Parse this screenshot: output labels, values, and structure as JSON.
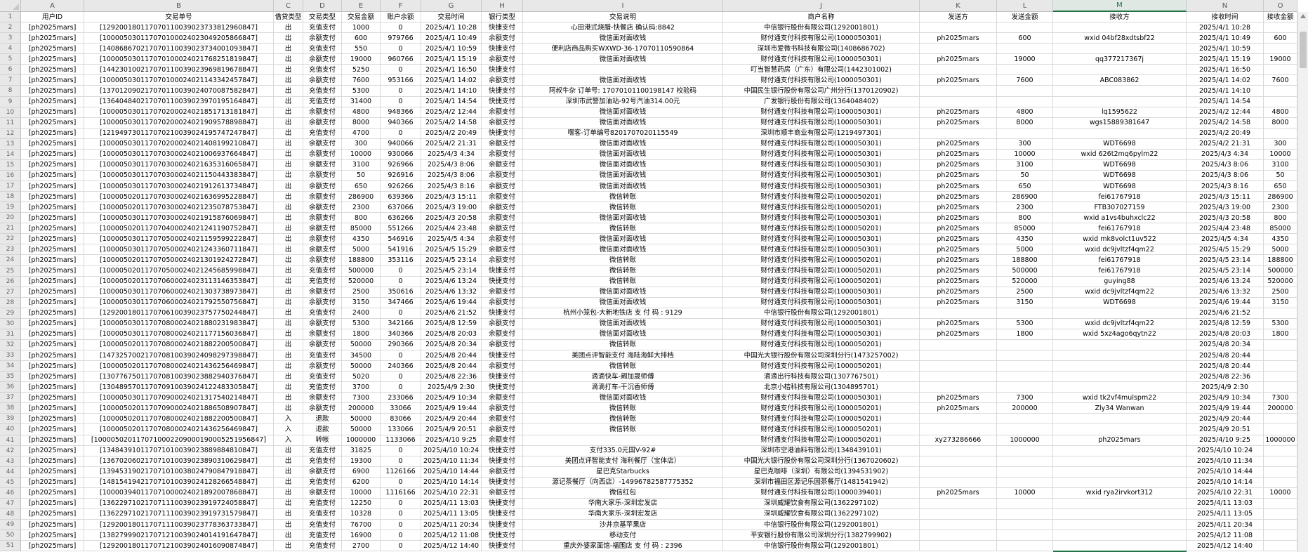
{
  "sheet": {
    "column_letters": [
      "A",
      "B",
      "C",
      "D",
      "E",
      "F",
      "G",
      "H",
      "I",
      "J",
      "K",
      "L",
      "M",
      "N",
      "O"
    ],
    "selected_column": "M",
    "selection_color": "#217346",
    "field_headers": [
      "用户ID",
      "交易单号",
      "借贷类型",
      "交易类型",
      "交易金额",
      "账户余额",
      "交易时间",
      "银行类型",
      "交易说明",
      "商户名称",
      "发送方",
      "发送金额",
      "接收方",
      "接收时间",
      "接收金额"
    ],
    "rows": [
      [
        "[ph2025mars]",
        "[129200180117070110039023733812960847]",
        "出",
        "充值支付",
        "1000",
        "0",
        "2025/4/1 10:28",
        "快捷支付",
        "心田港式烧腊-快餐店 确认码:8842",
        "中信银行股份有限公司(1292001801)",
        "",
        "",
        "",
        "2025/4/1 10:28",
        ""
      ],
      [
        "[ph2025mars]",
        "[100005030117070100024023049205866847]",
        "出",
        "余额支付",
        "600",
        "979766",
        "2025/4/1 10:49",
        "余额支付",
        "微信面对面收钱",
        "财付通支付科技有限公司(1000050301)",
        "ph2025mars",
        "600",
        "wxid 04bf28xdtsbf22",
        "2025/4/1 10:49",
        "600"
      ],
      [
        "[ph2025mars]",
        "[140868670217070110039023734001093847]",
        "出",
        "充值支付",
        "550",
        "0",
        "2025/4/1 10:59",
        "快捷支付",
        "便利店商品购买WXWD-36-17070110590864",
        "深圳市爱微书科技有限公司(1408686702)",
        "",
        "",
        "",
        "2025/4/1 10:59",
        ""
      ],
      [
        "[ph2025mars]",
        "[100005030117070100024021768251819847]",
        "出",
        "余额支付",
        "19000",
        "960766",
        "2025/4/1 15:19",
        "余额支付",
        "微信面对面收钱",
        "财付通支付科技有限公司(1000050301)",
        "ph2025mars",
        "19000",
        "qq377217367j",
        "2025/4/1 15:19",
        "19000"
      ],
      [
        "[ph2025mars]",
        "[144230100217070110039023969819678847]",
        "出",
        "充值支付",
        "5250",
        "0",
        "2025/4/1 16:50",
        "快捷支付",
        "",
        "叮当智慧药房（广东）有限公司(1442301002)",
        "",
        "",
        "",
        "2025/4/1 16:50",
        ""
      ],
      [
        "[ph2025mars]",
        "[100005030117070100024021143342457847]",
        "出",
        "余额支付",
        "7600",
        "953166",
        "2025/4/1 14:02",
        "余额支付",
        "微信面对面收钱",
        "财付通支付科技有限公司(1000050301)",
        "ph2025mars",
        "7600",
        "ABC083862",
        "2025/4/1 14:02",
        "7600"
      ],
      [
        "[ph2025mars]",
        "[137012090217070110039024070087582847]",
        "出",
        "充值支付",
        "5300",
        "0",
        "2025/4/1 14:10",
        "快捷支付",
        "阿叔牛杂 订单号: 17070101100198147 校验码",
        "中国民生银行股份有限公司广州分行(1370120902)",
        "",
        "",
        "",
        "2025/4/1 14:10",
        ""
      ],
      [
        "[ph2025mars]",
        "[136404840217070110039023970195164847]",
        "出",
        "充值支付",
        "31400",
        "0",
        "2025/4/1 14:54",
        "快捷支付",
        "深圳市武警加油站-92号汽油314.00元",
        "广发银行股份有限公司(1364048402)",
        "",
        "",
        "",
        "2025/4/1 14:54",
        ""
      ],
      [
        "[ph2025mars]",
        "[100005030117070200024021851713181847]",
        "出",
        "余额支付",
        "4800",
        "948366",
        "2025/4/2 12:44",
        "余额支付",
        "微信面对面收钱",
        "财付通支付科技有限公司(1000050301)",
        "ph2025mars",
        "4800",
        "lq1595622",
        "2025/4/2 12:44",
        "4800"
      ],
      [
        "[ph2025mars]",
        "[100005030117070200024021909578898847]",
        "出",
        "余额支付",
        "8000",
        "940366",
        "2025/4/2 14:58",
        "余额支付",
        "微信面对面收钱",
        "财付通支付科技有限公司(1000050301)",
        "ph2025mars",
        "8000",
        "wgs15889381647",
        "2025/4/2 14:58",
        "8000"
      ],
      [
        "[ph2025mars]",
        "[121949730117070210039024195747247847]",
        "出",
        "充值支付",
        "4700",
        "0",
        "2025/4/2 20:49",
        "快捷支付",
        "嘿客-订单编号8201707020115549",
        "深圳市顺丰商业有限公司(1219497301)",
        "",
        "",
        "",
        "2025/4/2 20:49",
        ""
      ],
      [
        "[ph2025mars]",
        "[100005030117070200024021408199210847]",
        "出",
        "余额支付",
        "300",
        "940066",
        "2025/4/2 21:31",
        "余额支付",
        "微信面对面收钱",
        "财付通支付科技有限公司(1000050301)",
        "ph2025mars",
        "300",
        "WDT6698",
        "2025/4/2 21:31",
        "300"
      ],
      [
        "[ph2025mars]",
        "[100005030117070300024021006937664847]",
        "出",
        "余额支付",
        "10000",
        "930066",
        "2025/4/3 4:34",
        "余额支付",
        "微信面对面收钱",
        "财付通支付科技有限公司(1000050301)",
        "ph2025mars",
        "10000",
        "wxid 626t2mq6pylm22",
        "2025/4/3 4:34",
        "10000"
      ],
      [
        "[ph2025mars]",
        "[100005030117070300024021635316065847]",
        "出",
        "余额支付",
        "3100",
        "926966",
        "2025/4/3 8:06",
        "余额支付",
        "微信面对面收钱",
        "财付通支付科技有限公司(1000050301)",
        "ph2025mars",
        "3100",
        "WDT6698",
        "2025/4/3 8:06",
        "3100"
      ],
      [
        "[ph2025mars]",
        "[100005030117070300024021150443383847]",
        "出",
        "余额支付",
        "50",
        "926916",
        "2025/4/3 8:06",
        "余额支付",
        "微信面对面收钱",
        "财付通支付科技有限公司(1000050301)",
        "ph2025mars",
        "50",
        "WDT6698",
        "2025/4/3 8:06",
        "50"
      ],
      [
        "[ph2025mars]",
        "[100005030117070300024021912613734847]",
        "出",
        "余额支付",
        "650",
        "926266",
        "2025/4/3 8:16",
        "余额支付",
        "微信面对面收钱",
        "财付通支付科技有限公司(1000050301)",
        "ph2025mars",
        "650",
        "WDT6698",
        "2025/4/3 8:16",
        "650"
      ],
      [
        "[ph2025mars]",
        "[100005020117070300024021636995228847]",
        "出",
        "余额支付",
        "286900",
        "639366",
        "2025/4/3 15:11",
        "余额支付",
        "微信转账",
        "财付通支付科技有限公司(1000050201)",
        "ph2025mars",
        "286900",
        "fei61767918",
        "2025/4/3 15:11",
        "286900"
      ],
      [
        "[ph2025mars]",
        "[100005020117070300024021235078753847]",
        "出",
        "余额支付",
        "2300",
        "637066",
        "2025/4/3 19:00",
        "余额支付",
        "微信转账",
        "财付通支付科技有限公司(1000050201)",
        "ph2025mars",
        "2300",
        "FTB307027159",
        "2025/4/3 19:00",
        "2300"
      ],
      [
        "[ph2025mars]",
        "[100005030117070300024021915876069847]",
        "出",
        "余额支付",
        "800",
        "636266",
        "2025/4/3 20:58",
        "余额支付",
        "微信面对面收钱",
        "财付通支付科技有限公司(1000050301)",
        "ph2025mars",
        "800",
        "wxid a1vs4buhxclc22",
        "2025/4/3 20:58",
        "800"
      ],
      [
        "[ph2025mars]",
        "[100005020117070400024021241190752847]",
        "出",
        "余额支付",
        "85000",
        "551266",
        "2025/4/4 23:48",
        "余额支付",
        "微信转账",
        "财付通支付科技有限公司(1000050201)",
        "ph2025mars",
        "85000",
        "fei61767918",
        "2025/4/4 23:48",
        "85000"
      ],
      [
        "[ph2025mars]",
        "[100005030117070500024021159599222847]",
        "出",
        "余额支付",
        "4350",
        "546916",
        "2025/4/5 4:34",
        "余额支付",
        "微信面对面收钱",
        "财付通支付科技有限公司(1000050301)",
        "ph2025mars",
        "4350",
        "wxid mk8volct1uv522",
        "2025/4/5 4:34",
        "4350"
      ],
      [
        "[ph2025mars]",
        "[100005030117070500024021243360711847]",
        "出",
        "余额支付",
        "5000",
        "541916",
        "2025/4/5 15:29",
        "余额支付",
        "微信面对面收钱",
        "财付通支付科技有限公司(1000050301)",
        "ph2025mars",
        "5000",
        "wxid dc9jvltzf4qm22",
        "2025/4/5 15:29",
        "5000"
      ],
      [
        "[ph2025mars]",
        "[100005020117070500024021301924272847]",
        "出",
        "余额支付",
        "188800",
        "353116",
        "2025/4/5 23:14",
        "余额支付",
        "微信转账",
        "财付通支付科技有限公司(1000050201)",
        "ph2025mars",
        "188800",
        "fei61767918",
        "2025/4/5 23:14",
        "188800"
      ],
      [
        "[ph2025mars]",
        "[100005020117070500024021245685998847]",
        "出",
        "充值支付",
        "500000",
        "0",
        "2025/4/5 23:14",
        "快捷支付",
        "微信转账",
        "财付通支付科技有限公司(1000050201)",
        "ph2025mars",
        "500000",
        "fei61767918",
        "2025/4/5 23:14",
        "500000"
      ],
      [
        "[ph2025mars]",
        "[100005020117070600024023113146353847]",
        "出",
        "充值支付",
        "520000",
        "0",
        "2025/4/6 13:24",
        "快捷支付",
        "微信转账",
        "财付通支付科技有限公司(1000050201)",
        "ph2025mars",
        "520000",
        "guying88",
        "2025/4/6 13:24",
        "520000"
      ],
      [
        "[ph2025mars]",
        "[100005030117070600024021303738973847]",
        "出",
        "余额支付",
        "2500",
        "350616",
        "2025/4/6 13:32",
        "余额支付",
        "微信面对面收钱",
        "财付通支付科技有限公司(1000050301)",
        "ph2025mars",
        "2500",
        "wxid dc9jvltzf4qm22",
        "2025/4/6 13:32",
        "2500"
      ],
      [
        "[ph2025mars]",
        "[100005030117070600024021792550756847]",
        "出",
        "余额支付",
        "3150",
        "347466",
        "2025/4/6 19:44",
        "余额支付",
        "微信面对面收钱",
        "财付通支付科技有限公司(1000050301)",
        "ph2025mars",
        "3150",
        "WDT6698",
        "2025/4/6 19:44",
        "3150"
      ],
      [
        "[ph2025mars]",
        "[129200180117070610039023757750244847]",
        "出",
        "充值支付",
        "2400",
        "0",
        "2025/4/6 21:52",
        "快捷支付",
        "杭州小笼包-大新地铁店 支 付 码 : 9129",
        "中信银行股份有限公司(1292001801)",
        "",
        "",
        "",
        "2025/4/6 21:52",
        ""
      ],
      [
        "[ph2025mars]",
        "[100005030117070800024021880231983847]",
        "出",
        "余额支付",
        "5300",
        "342166",
        "2025/4/8 12:59",
        "余额支付",
        "微信面对面收钱",
        "财付通支付科技有限公司(1000050301)",
        "ph2025mars",
        "5300",
        "wxid dc9jvltzf4qm22",
        "2025/4/8 12:59",
        "5300"
      ],
      [
        "[ph2025mars]",
        "[100005030117070800024021177156036847]",
        "出",
        "余额支付",
        "1800",
        "340366",
        "2025/4/8 20:03",
        "余额支付",
        "微信面对面收钱",
        "财付通支付科技有限公司(1000050301)",
        "ph2025mars",
        "1800",
        "wxid 5xz4ago6qytn22",
        "2025/4/8 20:03",
        "1800"
      ],
      [
        "[ph2025mars]",
        "[100005020117070800024021882200500847]",
        "出",
        "余额支付",
        "50000",
        "290366",
        "2025/4/8 20:34",
        "余额支付",
        "微信转账",
        "财付通支付科技有限公司(1000050201)",
        "",
        "",
        "",
        "2025/4/8 20:34",
        ""
      ],
      [
        "[ph2025mars]",
        "[147325700217070810039024098297398847]",
        "出",
        "充值支付",
        "34500",
        "0",
        "2025/4/8 20:44",
        "快捷支付",
        "美团点评智能支付 海陆海鲜大排档",
        "中国光大银行股份有限公司深圳分行(1473257002)",
        "",
        "",
        "",
        "2025/4/8 20:44",
        ""
      ],
      [
        "[ph2025mars]",
        "[100005020117070800024021436256469847]",
        "出",
        "余额支付",
        "50000",
        "240366",
        "2025/4/8 20:44",
        "余额支付",
        "微信转账",
        "财付通支付科技有限公司(1000050201)",
        "",
        "",
        "",
        "2025/4/8 20:44",
        ""
      ],
      [
        "[ph2025mars]",
        "[130776750117070810039023882940376847]",
        "出",
        "充值支付",
        "5020",
        "0",
        "2025/4/8 22:36",
        "快捷支付",
        "滴滴快车-阚加晟师傅",
        "滴滴出行科技有限公司(1307767501)",
        "",
        "",
        "",
        "2025/4/8 22:36",
        ""
      ],
      [
        "[ph2025mars]",
        "[130489570117070910039024122483305847]",
        "出",
        "充值支付",
        "3700",
        "0",
        "2025/4/9 2:30",
        "快捷支付",
        "滴滴打车-干沉香师傅",
        "北京小桔科技有限公司(1304895701)",
        "",
        "",
        "",
        "2025/4/9 2:30",
        ""
      ],
      [
        "[ph2025mars]",
        "[100005030117070900024021317540214847]",
        "出",
        "余额支付",
        "7300",
        "233066",
        "2025/4/9 10:34",
        "余额支付",
        "微信面对面收钱",
        "财付通支付科技有限公司(1000050301)",
        "ph2025mars",
        "7300",
        "wxid tk2vf4mulspm22",
        "2025/4/9 10:34",
        "7300"
      ],
      [
        "[ph2025mars]",
        "[100005020117070900024021886508907847]",
        "出",
        "余额支付",
        "200000",
        "33066",
        "2025/4/9 19:44",
        "余额支付",
        "微信转账",
        "财付通支付科技有限公司(1000050201)",
        "ph2025mars",
        "200000",
        "Zly34 Wanwan",
        "2025/4/9 19:44",
        "200000"
      ],
      [
        "[ph2025mars]",
        "[100005020117070800024021882200500847]",
        "入",
        "退款",
        "50000",
        "83066",
        "2025/4/9 20:44",
        "余额支付",
        "微信转账",
        "财付通支付科技有限公司(1000050201)",
        "",
        "",
        "",
        "2025/4/9 20:44",
        ""
      ],
      [
        "[ph2025mars]",
        "[100005020117070800024021436256469847]",
        "入",
        "退款",
        "50000",
        "133066",
        "2025/4/9 20:51",
        "余额支付",
        "微信转账",
        "财付通支付科技有限公司(1000050201)",
        "",
        "",
        "",
        "2025/4/9 20:51",
        ""
      ],
      [
        "[ph2025mars]",
        "[1000050201170710002209000190005251956847]",
        "入",
        "转帐",
        "1000000",
        "1133066",
        "2025/4/10 9:25",
        "余额支付",
        "",
        "财付通支付科技有限公司(1000050201)",
        "xy273286666",
        "1000000",
        "ph2025mars",
        "2025/4/10 9:25",
        "1000000"
      ],
      [
        "[ph2025mars]",
        "[134843910117071010039023889884810847]",
        "出",
        "充值支付",
        "31825",
        "0",
        "2025/4/10 10:24",
        "快捷支付",
        "支付335.0元国V-92#",
        "深圳市空港油料有限公司(1348439101)",
        "",
        "",
        "",
        "2025/4/10 10:24",
        ""
      ],
      [
        "[ph2025mars]",
        "[136702060217071010039023890310629847]",
        "出",
        "充值支付",
        "19300",
        "0",
        "2025/4/10 11:34",
        "快捷支付",
        "美团点评智能支付 海利餐厅（宝体店）",
        "中国光大银行股份有限公司深圳分行(1367020602)",
        "",
        "",
        "",
        "2025/4/10 11:34",
        ""
      ],
      [
        "[ph2025mars]",
        "[139453190217071010038024790847918847]",
        "出",
        "余额支付",
        "6900",
        "1126166",
        "2025/4/10 14:44",
        "余额支付",
        "星巴克Starbucks",
        "星巴克咖啡（深圳）有限公司(1394531902)",
        "",
        "",
        "",
        "2025/4/10 14:44",
        ""
      ],
      [
        "[ph2025mars]",
        "[148154194217071010039024128266548847]",
        "出",
        "充值支付",
        "6200",
        "0",
        "2025/4/10 14:14",
        "快捷支付",
        "源记茶餐厅（向西店）-14996782587775352",
        "深圳市福田区源记乐园茶餐厅(1481541942)",
        "",
        "",
        "",
        "2025/4/10 14:14",
        ""
      ],
      [
        "[ph2025mars]",
        "[100003940117071000024021892007868847]",
        "出",
        "余额支付",
        "10000",
        "1116166",
        "2025/4/10 22:31",
        "余额支付",
        "微信红包",
        "财付通支付科技有限公司(1000039401)",
        "ph2025mars",
        "10000",
        "wxid rya2irvkort312",
        "2025/4/10 22:31",
        "10000"
      ],
      [
        "[ph2025mars]",
        "[136229710217071110039023919724058847]",
        "出",
        "充值支付",
        "12250",
        "0",
        "2025/4/11 13:03",
        "快捷支付",
        "华南大家乐-深圳宏发店",
        "深圳威耀饮食有限公司(1362297102)",
        "",
        "",
        "",
        "2025/4/11 13:03",
        ""
      ],
      [
        "[ph2025mars]",
        "[136229710217071110039023919731579847]",
        "出",
        "充值支付",
        "10328",
        "0",
        "2025/4/11 13:05",
        "快捷支付",
        "华南大家乐-深圳宏发店",
        "深圳威耀饮食有限公司(1362297102)",
        "",
        "",
        "",
        "2025/4/11 13:05",
        ""
      ],
      [
        "[ph2025mars]",
        "[129200180117071110039023778363733847]",
        "出",
        "充值支付",
        "76700",
        "0",
        "2025/4/11 20:34",
        "快捷支付",
        "沙井京基苹果店",
        "中信银行股份有限公司(1292001801)",
        "",
        "",
        "",
        "2025/4/11 20:34",
        ""
      ],
      [
        "[ph2025mars]",
        "[138279990217071210039024014191647847]",
        "出",
        "充值支付",
        "16900",
        "0",
        "2025/4/12 11:08",
        "快捷支付",
        "移动支付",
        "平安银行股份有限公司深圳分行(1382799902)",
        "",
        "",
        "",
        "2025/4/12 11:08",
        ""
      ],
      [
        "[ph2025mars]",
        "[129200180117071210039024016090874847]",
        "出",
        "充值支付",
        "2700",
        "0",
        "2025/4/12 14:40",
        "快捷支付",
        "重庆外婆家面馆-福围店 支 付 码 : 2396",
        "中信银行股份有限公司(1292001801)",
        "",
        "",
        "",
        "2025/4/12 14:40",
        ""
      ]
    ]
  }
}
